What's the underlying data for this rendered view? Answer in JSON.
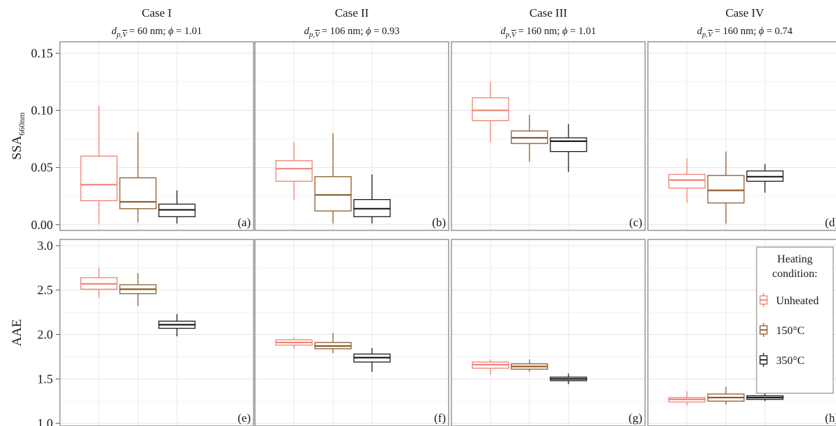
{
  "figure": {
    "facets": [
      {
        "title": "Case I",
        "subtitle": "= 60 nm; ",
        "subtitle_tail": " = 1.01"
      },
      {
        "title": "Case II",
        "subtitle": "= 106 nm; ",
        "subtitle_tail": " = 0.93"
      },
      {
        "title": "Case III",
        "subtitle": "= 160 nm; ",
        "subtitle_tail": " = 1.01"
      },
      {
        "title": "Case IV",
        "subtitle": "= 160 nm; ",
        "subtitle_tail": " = 0.74"
      }
    ],
    "subtitle_symbols": {
      "d": "d",
      "sub": "p,",
      "vbar": "V",
      "phi": "ϕ"
    },
    "legend": {
      "title_line1": "Heating",
      "title_line2": "condition:",
      "placement": "right, inside bottom-right panel"
    },
    "colors": {
      "Unheated": "#f08070",
      "150°C": "#8b5a2b",
      "350°C": "#1a1a1a"
    }
  },
  "chart_data": [
    {
      "type": "box",
      "row": "SSA",
      "ylabel": "SSA",
      "ylabel_sub": "660nm",
      "ylim": [
        -0.005,
        0.16
      ],
      "yticks": [
        "0.00",
        "0.05",
        "0.10",
        "0.15"
      ],
      "ytick_values": [
        0.0,
        0.05,
        0.1,
        0.15
      ],
      "grid": true,
      "series_names": [
        "Unheated",
        "150°C",
        "350°C"
      ],
      "panels": [
        {
          "label": "(a)",
          "boxes": [
            {
              "series": "Unheated",
              "min": 0.001,
              "q1": 0.021,
              "median": 0.035,
              "q3": 0.06,
              "max": 0.104
            },
            {
              "series": "150°C",
              "min": 0.002,
              "q1": 0.014,
              "median": 0.02,
              "q3": 0.041,
              "max": 0.081
            },
            {
              "series": "350°C",
              "min": 0.001,
              "q1": 0.007,
              "median": 0.013,
              "q3": 0.018,
              "max": 0.03
            }
          ]
        },
        {
          "label": "(b)",
          "boxes": [
            {
              "series": "Unheated",
              "min": 0.022,
              "q1": 0.038,
              "median": 0.049,
              "q3": 0.056,
              "max": 0.072
            },
            {
              "series": "150°C",
              "min": 0.001,
              "q1": 0.012,
              "median": 0.026,
              "q3": 0.042,
              "max": 0.08
            },
            {
              "series": "350°C",
              "min": 0.001,
              "q1": 0.007,
              "median": 0.014,
              "q3": 0.022,
              "max": 0.044
            }
          ]
        },
        {
          "label": "(c)",
          "boxes": [
            {
              "series": "Unheated",
              "min": 0.072,
              "q1": 0.091,
              "median": 0.1,
              "q3": 0.111,
              "max": 0.125
            },
            {
              "series": "150°C",
              "min": 0.055,
              "q1": 0.071,
              "median": 0.076,
              "q3": 0.082,
              "max": 0.096
            },
            {
              "series": "350°C",
              "min": 0.046,
              "q1": 0.064,
              "median": 0.073,
              "q3": 0.076,
              "max": 0.088
            }
          ]
        },
        {
          "label": "(d)",
          "boxes": [
            {
              "series": "Unheated",
              "min": 0.019,
              "q1": 0.032,
              "median": 0.039,
              "q3": 0.044,
              "max": 0.058
            },
            {
              "series": "150°C",
              "min": 0.001,
              "q1": 0.019,
              "median": 0.03,
              "q3": 0.043,
              "max": 0.064
            },
            {
              "series": "350°C",
              "min": 0.028,
              "q1": 0.038,
              "median": 0.042,
              "q3": 0.047,
              "max": 0.053
            }
          ]
        }
      ]
    },
    {
      "type": "box",
      "row": "AAE",
      "ylabel": "AAE",
      "ylim": [
        0.97,
        3.07
      ],
      "yticks": [
        "1.0",
        "1.5",
        "2.0",
        "2.5",
        "3.0"
      ],
      "ytick_values": [
        1.0,
        1.5,
        2.0,
        2.5,
        3.0
      ],
      "grid": true,
      "series_names": [
        "Unheated",
        "150°C",
        "350°C"
      ],
      "panels": [
        {
          "label": "(e)",
          "boxes": [
            {
              "series": "Unheated",
              "min": 2.41,
              "q1": 2.51,
              "median": 2.57,
              "q3": 2.64,
              "max": 2.75
            },
            {
              "series": "150°C",
              "min": 2.32,
              "q1": 2.46,
              "median": 2.51,
              "q3": 2.56,
              "max": 2.69
            },
            {
              "series": "350°C",
              "min": 1.98,
              "q1": 2.07,
              "median": 2.11,
              "q3": 2.15,
              "max": 2.23
            }
          ]
        },
        {
          "label": "(f)",
          "boxes": [
            {
              "series": "Unheated",
              "min": 1.84,
              "q1": 1.88,
              "median": 1.91,
              "q3": 1.94,
              "max": 1.97
            },
            {
              "series": "150°C",
              "min": 1.79,
              "q1": 1.84,
              "median": 1.87,
              "q3": 1.91,
              "max": 2.02
            },
            {
              "series": "350°C",
              "min": 1.58,
              "q1": 1.69,
              "median": 1.74,
              "q3": 1.78,
              "max": 1.85
            }
          ]
        },
        {
          "label": "(g)",
          "boxes": [
            {
              "series": "Unheated",
              "min": 1.55,
              "q1": 1.62,
              "median": 1.66,
              "q3": 1.69,
              "max": 1.72
            },
            {
              "series": "150°C",
              "min": 1.58,
              "q1": 1.61,
              "median": 1.64,
              "q3": 1.67,
              "max": 1.72
            },
            {
              "series": "350°C",
              "min": 1.44,
              "q1": 1.48,
              "median": 1.5,
              "q3": 1.52,
              "max": 1.56
            }
          ]
        },
        {
          "label": "(h)",
          "boxes": [
            {
              "series": "Unheated",
              "min": 1.2,
              "q1": 1.24,
              "median": 1.27,
              "q3": 1.29,
              "max": 1.36
            },
            {
              "series": "150°C",
              "min": 1.21,
              "q1": 1.25,
              "median": 1.29,
              "q3": 1.33,
              "max": 1.41
            },
            {
              "series": "350°C",
              "min": 1.25,
              "q1": 1.27,
              "median": 1.29,
              "q3": 1.31,
              "max": 1.34
            }
          ]
        }
      ]
    }
  ]
}
